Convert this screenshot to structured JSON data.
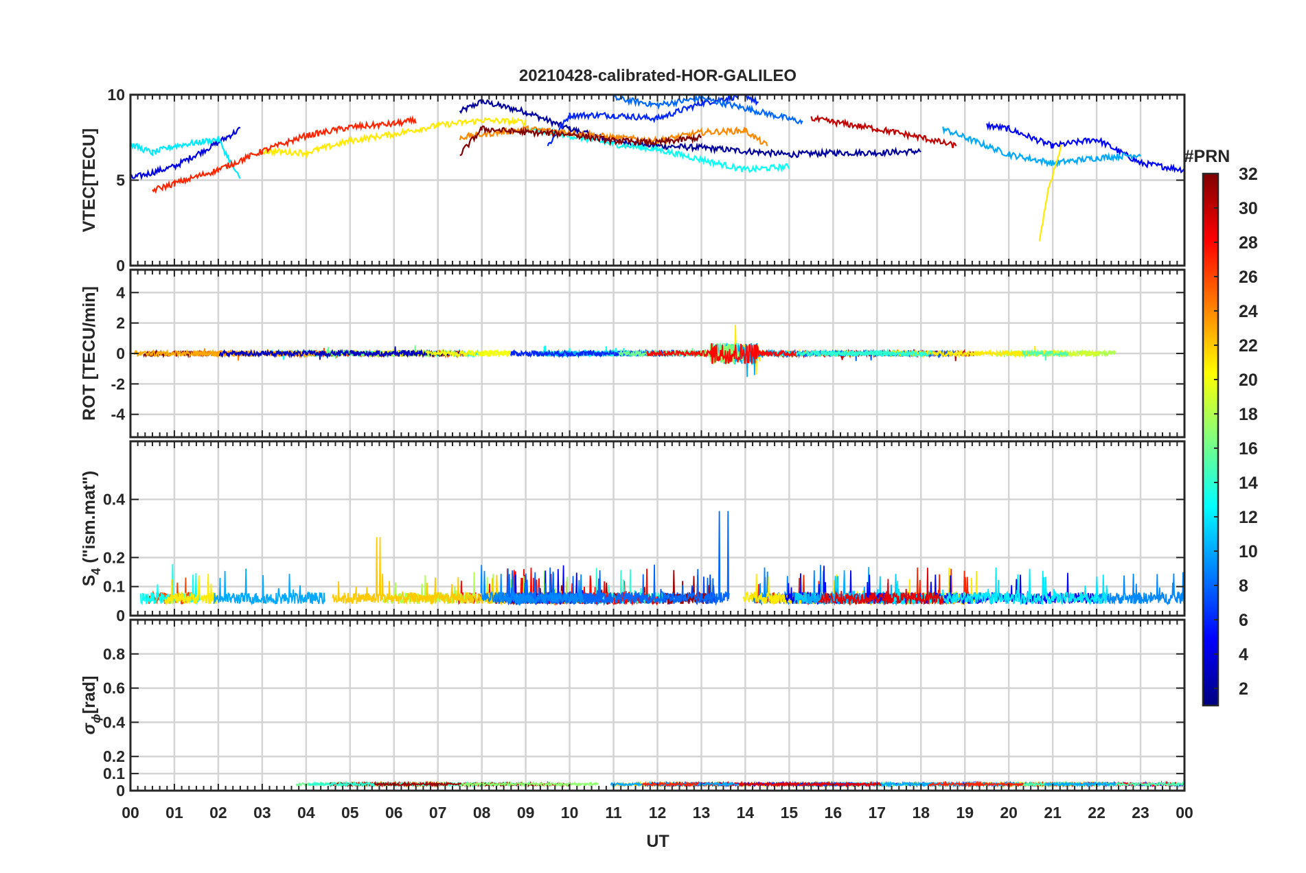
{
  "title": "20210428-calibrated-HOR-GALILEO",
  "xlabel": "UT",
  "x_ticks": [
    "00",
    "01",
    "02",
    "03",
    "04",
    "05",
    "06",
    "07",
    "08",
    "09",
    "10",
    "11",
    "12",
    "13",
    "14",
    "15",
    "16",
    "17",
    "18",
    "19",
    "20",
    "21",
    "22",
    "23",
    "00"
  ],
  "colorbar": {
    "label": "#PRN",
    "range": [
      1,
      32
    ],
    "ticks": [
      "2",
      "4",
      "6",
      "8",
      "10",
      "12",
      "14",
      "16",
      "18",
      "20",
      "22",
      "24",
      "26",
      "28",
      "30",
      "32"
    ],
    "colormap": "jet"
  },
  "panels": [
    {
      "id": "vtec",
      "ylabel": "VTEC[TECU]",
      "ylim": [
        0,
        10
      ],
      "yticks": [
        "0",
        "5",
        "10"
      ]
    },
    {
      "id": "rot",
      "ylabel": "ROT [TECU/min]",
      "ylim": [
        -5.5,
        5.5
      ],
      "yticks": [
        "-4",
        "-2",
        "0",
        "2",
        "4"
      ]
    },
    {
      "id": "s4",
      "ylabel_main": "S",
      "ylabel_sub": "4",
      "ylabel_rest": " (\"ism.mat\")",
      "ylim": [
        0,
        0.6
      ],
      "yticks": [
        "0",
        "0.1",
        "0.2",
        "0.4"
      ]
    },
    {
      "id": "sigphi",
      "ylabel_main": "σ",
      "ylabel_sub": "ϕ",
      "ylabel_rest": "[rad]",
      "ylim": [
        0,
        1
      ],
      "yticks": [
        "0",
        "0.1",
        "0.2",
        "0.4",
        "0.6",
        "0.8"
      ]
    }
  ],
  "chart_data": {
    "type": "line",
    "title": "20210428-calibrated-HOR-GALILEO",
    "xlabel": "UT",
    "x_range_hours": [
      0,
      24
    ],
    "panels": [
      {
        "name": "VTEC",
        "ylabel": "VTEC[TECU]",
        "ylim": [
          0,
          10
        ],
        "series": [
          {
            "prn": 2,
            "x": [
              7.5,
              8,
              9,
              10,
              11,
              12,
              13,
              14,
              15,
              16,
              17,
              18
            ],
            "y": [
              9.0,
              9.6,
              9.0,
              8.0,
              7.3,
              7.0,
              6.9,
              6.7,
              6.5,
              6.6,
              6.6,
              6.7
            ]
          },
          {
            "prn": 4,
            "x": [
              0,
              1,
              1.5,
              2,
              2.5
            ],
            "y": [
              5.1,
              5.8,
              6.5,
              7.2,
              8.0
            ]
          },
          {
            "prn": 5,
            "x": [
              19.5,
              20,
              21,
              22,
              23,
              24
            ],
            "y": [
              8.2,
              8.0,
              7.0,
              7.4,
              6.0,
              5.6
            ]
          },
          {
            "prn": 6,
            "x": [
              9.5,
              10,
              11,
              12,
              13,
              14,
              14.3
            ],
            "y": [
              7.0,
              8.8,
              8.8,
              8.6,
              9.5,
              10.0,
              9.5
            ]
          },
          {
            "prn": 8,
            "x": [
              11,
              12,
              13,
              14,
              15.3
            ],
            "y": [
              9.8,
              9.4,
              9.8,
              9.2,
              8.4
            ]
          },
          {
            "prn": 10,
            "x": [
              18.5,
              19,
              20,
              21,
              22,
              23
            ],
            "y": [
              8.0,
              7.5,
              6.5,
              6.0,
              6.3,
              6.5
            ]
          },
          {
            "prn": 12,
            "x": [
              0,
              0.5,
              1,
              1.5,
              2,
              2.5
            ],
            "y": [
              7.1,
              6.6,
              7.0,
              7.2,
              7.4,
              5.0
            ]
          },
          {
            "prn": 13,
            "x": [
              9,
              10,
              11,
              12,
              13,
              14,
              15
            ],
            "y": [
              8.0,
              7.6,
              7.1,
              6.8,
              6.2,
              5.6,
              5.8
            ]
          },
          {
            "prn": 21,
            "x": [
              3,
              4,
              5,
              6,
              7,
              8,
              9
            ],
            "y": [
              6.7,
              6.6,
              7.3,
              7.7,
              8.2,
              8.5,
              8.4
            ]
          },
          {
            "prn": 21,
            "x": [
              20.7,
              20.9,
              21.2
            ],
            "y": [
              1.5,
              4.5,
              7.0
            ]
          },
          {
            "prn": 24,
            "x": [
              7.5,
              9,
              10,
              11,
              12,
              13,
              14,
              14.5
            ],
            "y": [
              7.5,
              8.0,
              7.8,
              7.5,
              7.3,
              7.8,
              7.9,
              7.0
            ]
          },
          {
            "prn": 27,
            "x": [
              0.5,
              1,
              2,
              3,
              4,
              5,
              6,
              6.5
            ],
            "y": [
              4.4,
              4.8,
              5.6,
              6.7,
              7.6,
              8.1,
              8.3,
              8.5
            ]
          },
          {
            "prn": 30,
            "x": [
              15.5,
              16,
              17,
              18,
              18.8
            ],
            "y": [
              8.6,
              8.4,
              8.0,
              7.5,
              7.0
            ]
          },
          {
            "prn": 32,
            "x": [
              7.5,
              8,
              9,
              10,
              11,
              12,
              13
            ],
            "y": [
              6.5,
              8.0,
              7.8,
              7.7,
              7.3,
              7.2,
              7.5
            ]
          }
        ]
      },
      {
        "name": "ROT",
        "ylabel": "ROT [TECU/min]",
        "ylim": [
          -5.5,
          5.5
        ],
        "typical": "noise near 0 within ±0.5, spikes to 1.8 near 13.6 UT and -1.3 near 13.9 UT"
      },
      {
        "name": "S4",
        "ylabel": "S4 (\"ism.mat\")",
        "ylim": [
          0,
          0.6
        ],
        "typical": "0.02-0.1 background, peaks 0.36 near 13.5 UT, 0.29 near 5.6 UT"
      },
      {
        "name": "sigma_phi",
        "ylabel": "sigma_phi [rad]",
        "ylim": [
          0,
          1
        ],
        "typical": "0.02-0.08 throughout"
      }
    ]
  }
}
